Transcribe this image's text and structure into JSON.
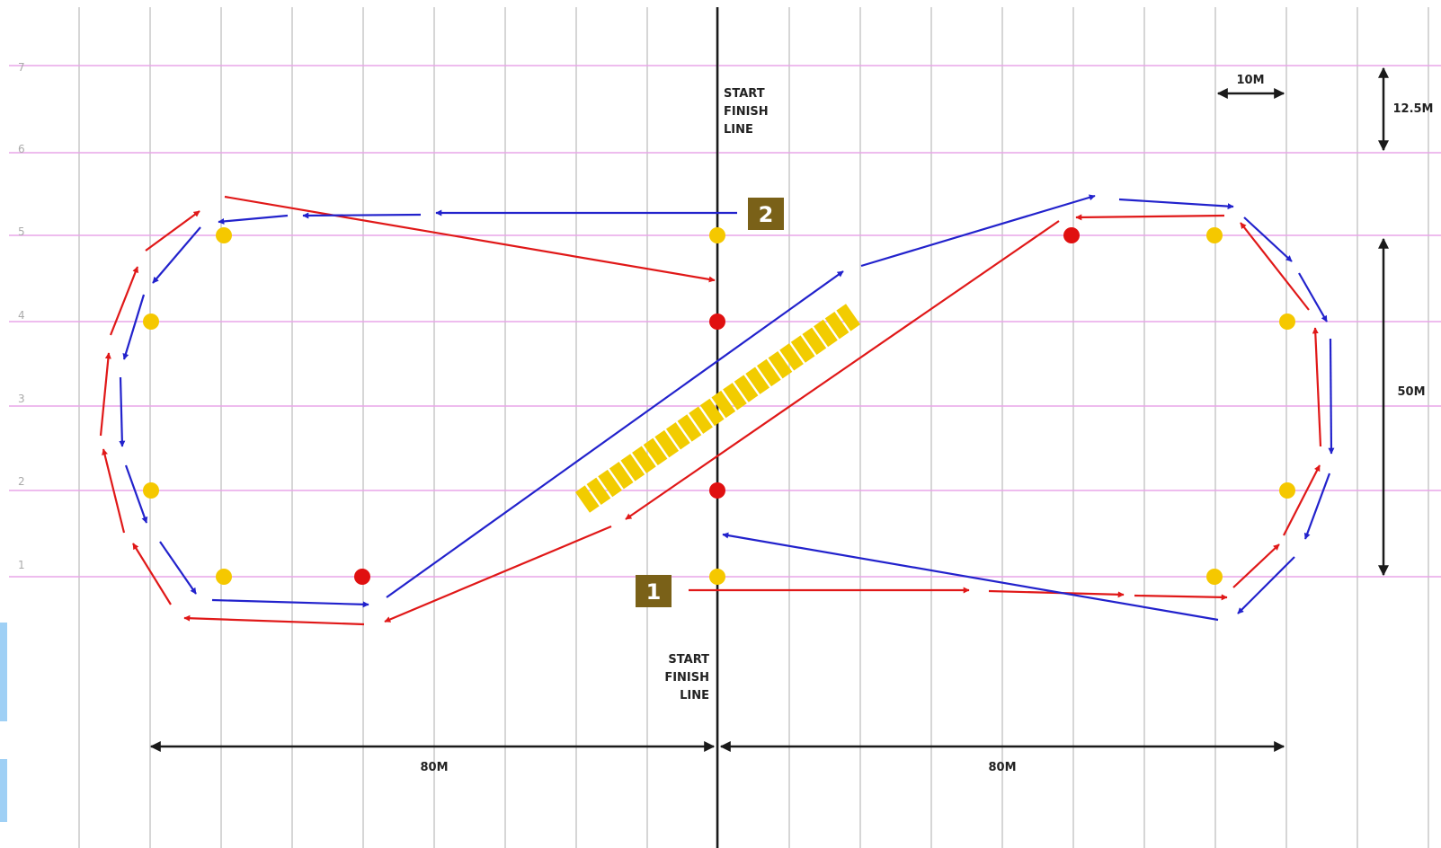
{
  "rows": [
    "1",
    "2",
    "3",
    "4",
    "5",
    "6",
    "7"
  ],
  "labels": {
    "start_finish_top": [
      "START",
      "FINISH",
      "LINE"
    ],
    "start_finish_bottom": [
      "START",
      "FINISH",
      "LINE"
    ],
    "dim_10m": "10M",
    "dim_12_5m": "12.5M",
    "dim_50m": "50M",
    "dim_80m_left": "80M",
    "dim_80m_right": "80M",
    "badge_1": "1",
    "badge_2": "2"
  },
  "colors": {
    "grid_vertical": "#c8c8c8",
    "grid_horizontal": "#e8a6e8",
    "red_path": "#e01818",
    "blue_path": "#2222cc",
    "yellow_cone": "#f5c800",
    "red_cone": "#e01010",
    "badge": "#7a6118",
    "ladder": "#f2cc00",
    "ink": "#1a1a1a"
  }
}
